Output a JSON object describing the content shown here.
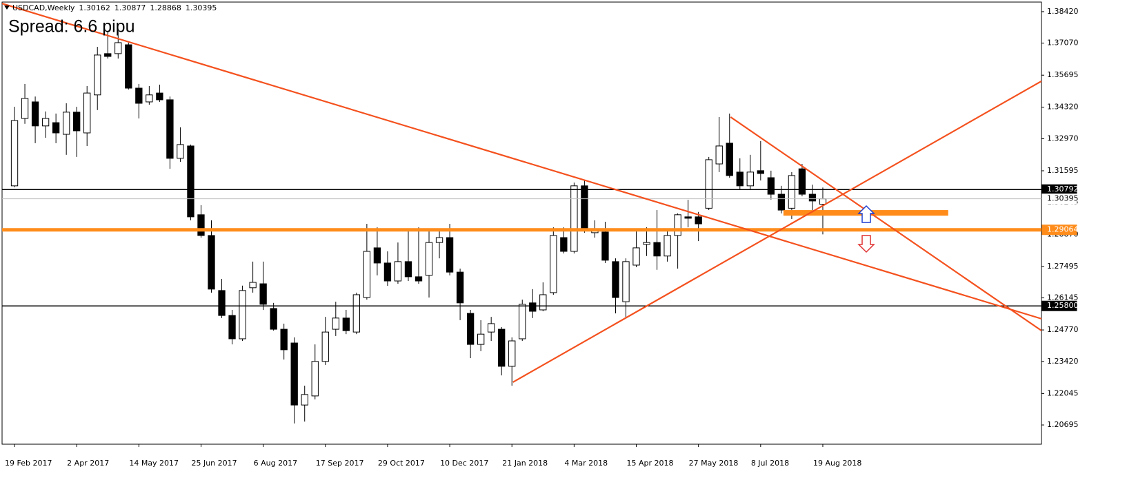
{
  "chart_data": {
    "type": "candlestick",
    "title": "USDCAD,Weekly",
    "subtitle": "Spread: 6.6 pipu",
    "categories": [
      "19 Feb 2017",
      null,
      null,
      null,
      null,
      null,
      "2 Apr 2017",
      null,
      null,
      null,
      null,
      null,
      "14 May 2017",
      null,
      null,
      null,
      null,
      null,
      "25 Jun 2017",
      null,
      null,
      null,
      null,
      null,
      "6 Aug 2017",
      null,
      null,
      null,
      null,
      null,
      "17 Sep 2017",
      null,
      null,
      null,
      null,
      null,
      "29 Oct 2017",
      null,
      null,
      null,
      null,
      null,
      "10 Dec 2017",
      null,
      null,
      null,
      null,
      null,
      "21 Jan 2018",
      null,
      null,
      null,
      null,
      null,
      "4 Mar 2018",
      null,
      null,
      null,
      null,
      null,
      "15 Apr 2018",
      null,
      null,
      null,
      null,
      null,
      "27 May 2018",
      null,
      null,
      null,
      null,
      null,
      "8 Jul 2018",
      null,
      null,
      null,
      null,
      null,
      "19 Aug 2018"
    ],
    "open": [
      1.3095,
      1.3384,
      1.3455,
      1.3352,
      1.3366,
      1.3316,
      1.3411,
      1.3322,
      1.3485,
      1.3662,
      1.3662,
      1.37,
      1.3514,
      1.3455,
      1.3493,
      1.3464,
      1.3213,
      1.3266,
      1.2971,
      1.2882,
      1.2646,
      1.2539,
      1.2439,
      1.2658,
      1.2675,
      1.2569,
      1.248,
      1.2421,
      1.2155,
      1.2194,
      1.2342,
      1.248,
      1.2528,
      1.2468,
      1.2616,
      1.2829,
      1.2764,
      1.2687,
      1.277,
      1.2705,
      1.2711,
      1.2852,
      1.2873,
      1.2725,
      1.2548,
      1.2415,
      1.2468,
      1.248,
      1.2321,
      1.2439,
      1.2593,
      1.2563,
      1.2637,
      1.2873,
      1.2814,
      1.3095,
      1.2894,
      1.2897,
      1.277,
      1.2598,
      1.2755,
      1.2844,
      1.2852,
      1.2794,
      1.2882,
      1.2962,
      1.2962,
      1.2999,
      1.3189,
      1.3278,
      1.3154,
      1.3095,
      1.316,
      1.313,
      1.3059,
      1.2999,
      1.3168,
      1.3059,
      1.30162
    ],
    "high": [
      1.3434,
      1.3532,
      1.3478,
      1.3414,
      1.3405,
      1.3449,
      1.3434,
      1.3523,
      1.3691,
      1.3759,
      1.3759,
      1.3709,
      1.3532,
      1.3523,
      1.3529,
      1.3478,
      1.3346,
      1.3272,
      1.3012,
      1.2947,
      1.2696,
      1.2563,
      1.2667,
      1.277,
      1.277,
      1.2593,
      1.2504,
      1.2445,
      1.2238,
      1.2415,
      1.2533,
      1.2598,
      1.2563,
      1.2637,
      1.2932,
      1.2917,
      1.2814,
      1.2852,
      1.2903,
      1.2917,
      1.2903,
      1.2903,
      1.2932,
      1.274,
      1.2563,
      1.2519,
      1.2533,
      1.2489,
      1.2445,
      1.2607,
      1.2652,
      1.2681,
      1.2917,
      1.2917,
      1.3109,
      1.3118,
      1.2947,
      1.2941,
      1.2784,
      1.2784,
      1.2903,
      1.2917,
      1.2991,
      1.2903,
      1.2977,
      1.3035,
      1.2983,
      1.3219,
      1.339,
      1.3405,
      1.3213,
      1.3228,
      1.3287,
      1.316,
      1.3095,
      1.3154,
      1.3189,
      1.31,
      1.30877
    ],
    "low": [
      1.3089,
      1.3361,
      1.3278,
      1.3301,
      1.3278,
      1.3228,
      1.3219,
      1.3266,
      1.342,
      1.3641,
      1.3641,
      1.3508,
      1.3384,
      1.3443,
      1.3455,
      1.3168,
      1.3198,
      1.2947,
      1.2873,
      1.2637,
      1.2528,
      1.2415,
      1.243,
      1.2637,
      1.2563,
      1.2474,
      1.235,
      1.2076,
      1.2084,
      1.2179,
      1.2327,
      1.2451,
      1.2459,
      1.2459,
      1.2607,
      1.2711,
      1.2666,
      1.2675,
      1.2687,
      1.2675,
      1.2616,
      1.2784,
      1.2711,
      1.2519,
      1.2356,
      1.2386,
      1.243,
      1.2282,
      1.2238,
      1.243,
      1.2528,
      1.2557,
      1.2628,
      1.2805,
      1.2805,
      1.2894,
      1.2873,
      1.2764,
      1.2548,
      1.2528,
      1.2746,
      1.2794,
      1.2735,
      1.277,
      1.274,
      1.2917,
      1.2858,
      1.2991,
      1.3154,
      1.313,
      1.308,
      1.308,
      1.3118,
      1.3036,
      1.2977,
      1.2953,
      1.305,
      1.2991,
      1.28868
    ],
    "close": [
      1.3375,
      1.347,
      1.3352,
      1.3384,
      1.3322,
      1.3411,
      1.3331,
      1.3493,
      1.3656,
      1.365,
      1.3709,
      1.3514,
      1.3449,
      1.3485,
      1.3464,
      1.3213,
      1.3272,
      1.2962,
      1.2882,
      1.2652,
      1.2539,
      1.2439,
      1.2646,
      1.2681,
      1.2587,
      1.248,
      1.2392,
      1.2155,
      1.22,
      1.2342,
      1.2468,
      1.2528,
      1.2474,
      1.2628,
      1.2814,
      1.2764,
      1.2687,
      1.277,
      1.2705,
      1.2687,
      1.2852,
      1.2873,
      1.2725,
      1.2593,
      1.2415,
      1.2459,
      1.2504,
      1.2321,
      1.243,
      1.2587,
      1.2557,
      1.2628,
      1.2882,
      1.2814,
      1.3095,
      1.2903,
      1.2903,
      1.2776,
      1.2616,
      1.277,
      1.2829,
      1.2852,
      1.2794,
      1.2882,
      1.2971,
      1.2956,
      1.2932,
      1.3207,
      1.3266,
      1.3139,
      1.3095,
      1.3154,
      1.3148,
      1.3059,
      1.2991,
      1.3139,
      1.3059,
      1.303,
      1.30395
    ],
    "up_color": "#ffffff",
    "down_color": "#000000",
    "xlim": [
      -1.2,
      99.1
    ],
    "ylim": [
      1.1987,
      1.3892
    ],
    "yticks": [
      {
        "value": 1.3842,
        "label": "1.38420"
      },
      {
        "value": 1.3707,
        "label": "1.37070"
      },
      {
        "value": 1.35695,
        "label": "1.35695"
      },
      {
        "value": 1.3432,
        "label": "1.34320"
      },
      {
        "value": 1.3297,
        "label": "1.32970"
      },
      {
        "value": 1.31595,
        "label": "1.31595"
      },
      {
        "value": 1.30245,
        "label": "1.30245"
      },
      {
        "value": 1.2887,
        "label": "1.28870"
      },
      {
        "value": 1.27495,
        "label": "1.27495"
      },
      {
        "value": 1.26145,
        "label": "1.26145"
      },
      {
        "value": 1.2477,
        "label": "1.24770"
      },
      {
        "value": 1.2342,
        "label": "1.23420"
      },
      {
        "value": 1.22045,
        "label": "1.22045"
      },
      {
        "value": 1.20695,
        "label": "1.20695"
      }
    ],
    "hlines": [
      {
        "value": 1.30792,
        "label": "1.30792",
        "color": "#000000",
        "label_bg": "#000000",
        "line_width": 1.5
      },
      {
        "value": 1.30395,
        "label": "1.30395",
        "color": "#c0c0c0",
        "label_bg": "#ffffff",
        "line_width": 1
      },
      {
        "value": 1.29064,
        "label": "1.29064",
        "color": "#ff8c1a",
        "label_bg": "#ff8c1a",
        "line_width": 5
      },
      {
        "value": 1.258,
        "label": "1.25800",
        "color": "#000000",
        "label_bg": "#000000",
        "line_width": 1.5
      }
    ],
    "trendlines": [
      {
        "x": [
          -1.2,
          99.1
        ],
        "y": [
          1.3877,
          1.2525
        ],
        "color": "#f4511e"
      },
      {
        "x": [
          48.1,
          99.1
        ],
        "y": [
          1.2253,
          1.3544
        ],
        "color": "#f4511e"
      },
      {
        "x": [
          69.1,
          99.1
        ],
        "y": [
          1.339,
          1.2474
        ],
        "color": "#f4511e"
      }
    ],
    "zone": {
      "x": [
        74.2,
        90.1
      ],
      "y": [
        1.2967,
        1.2991
      ],
      "color": "#ff8c1a"
    }
  }
}
